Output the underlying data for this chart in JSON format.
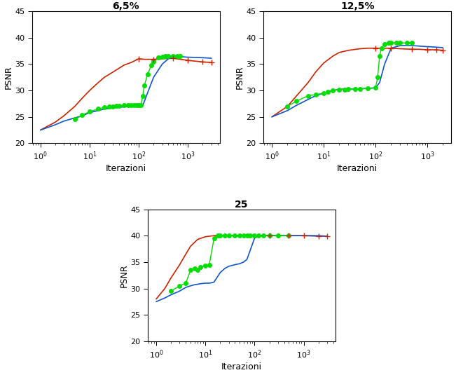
{
  "subplots": [
    {
      "title": "6,5%",
      "xlim_log": [
        0,
        3.5
      ],
      "ylim": [
        20,
        45
      ],
      "ylabel": "PSNR",
      "xlabel": "Iterazioni",
      "red_line": {
        "x": [
          1,
          2,
          3,
          5,
          7,
          10,
          15,
          20,
          30,
          50,
          70,
          100,
          130,
          200,
          300,
          500,
          700,
          1000,
          2000,
          3000
        ],
        "y": [
          22.5,
          24.0,
          25.2,
          27.0,
          28.5,
          30.0,
          31.5,
          32.5,
          33.5,
          34.8,
          35.3,
          36.0,
          35.9,
          35.9,
          36.0,
          36.1,
          35.9,
          35.7,
          35.4,
          35.3
        ]
      },
      "red_markers": {
        "x": [
          100,
          200,
          500,
          1000,
          2000,
          3000
        ],
        "y": [
          36.0,
          35.9,
          36.1,
          35.7,
          35.4,
          35.3
        ]
      },
      "blue_line": {
        "x": [
          1,
          2,
          3,
          5,
          7,
          10,
          15,
          20,
          30,
          50,
          70,
          100,
          120,
          150,
          200,
          300,
          400,
          500,
          700,
          1000,
          2000,
          3000
        ],
        "y": [
          22.5,
          23.5,
          24.2,
          24.8,
          25.2,
          25.8,
          26.2,
          26.5,
          26.7,
          26.9,
          27.0,
          27.1,
          27.1,
          29.5,
          32.5,
          35.0,
          36.0,
          36.3,
          36.4,
          36.3,
          36.2,
          36.1
        ]
      },
      "green_line": {
        "x": [
          5,
          7,
          10,
          15,
          20,
          25,
          30,
          35,
          40,
          50,
          60,
          70,
          80,
          90,
          100,
          110,
          120,
          130,
          150,
          180,
          200,
          250,
          300,
          350,
          400,
          500,
          600,
          700
        ],
        "y": [
          24.5,
          25.3,
          26.0,
          26.5,
          26.8,
          26.9,
          27.0,
          27.1,
          27.1,
          27.2,
          27.2,
          27.2,
          27.2,
          27.2,
          27.2,
          27.2,
          29.0,
          31.0,
          33.0,
          34.8,
          35.5,
          36.2,
          36.4,
          36.5,
          36.5,
          36.5,
          36.5,
          36.5
        ]
      }
    },
    {
      "title": "12,5%",
      "xlim_log": [
        0,
        3.3
      ],
      "ylim": [
        20,
        45
      ],
      "ylabel": "PSNR",
      "xlabel": "Iterazioni",
      "red_line": {
        "x": [
          1,
          2,
          3,
          5,
          7,
          10,
          15,
          20,
          30,
          50,
          70,
          100,
          150,
          200,
          300,
          500,
          700,
          1000,
          1500,
          2000
        ],
        "y": [
          25.0,
          27.0,
          29.0,
          31.5,
          33.5,
          35.2,
          36.5,
          37.2,
          37.6,
          37.9,
          38.0,
          38.0,
          38.0,
          38.0,
          37.9,
          37.8,
          37.8,
          37.7,
          37.7,
          37.6
        ]
      },
      "red_markers": {
        "x": [
          100,
          200,
          500,
          1000,
          1500,
          2000
        ],
        "y": [
          38.0,
          38.0,
          37.8,
          37.7,
          37.7,
          37.6
        ]
      },
      "blue_line": {
        "x": [
          1,
          2,
          3,
          5,
          7,
          10,
          15,
          20,
          30,
          50,
          70,
          100,
          120,
          150,
          200,
          300,
          500,
          700,
          1000,
          1500,
          2000
        ],
        "y": [
          25.0,
          26.2,
          27.2,
          28.3,
          29.0,
          29.5,
          30.0,
          30.2,
          30.3,
          30.3,
          30.4,
          30.5,
          31.5,
          35.0,
          38.0,
          38.5,
          38.5,
          38.4,
          38.3,
          38.2,
          38.1
        ]
      },
      "green_line": {
        "x": [
          2,
          3,
          5,
          7,
          10,
          12,
          15,
          20,
          25,
          30,
          40,
          50,
          70,
          100,
          110,
          120,
          130,
          150,
          180,
          200,
          250,
          300,
          400,
          500
        ],
        "y": [
          27.0,
          28.0,
          29.0,
          29.2,
          29.5,
          29.7,
          30.0,
          30.2,
          30.2,
          30.3,
          30.3,
          30.3,
          30.4,
          30.5,
          32.5,
          36.5,
          38.0,
          38.8,
          39.0,
          39.0,
          39.0,
          39.0,
          39.0,
          39.0
        ]
      }
    },
    {
      "title": "25",
      "xlim_log": [
        0,
        3.5
      ],
      "ylim": [
        20,
        45
      ],
      "ylabel": "PSNR",
      "xlabel": "Iterazioni",
      "red_line": {
        "x": [
          1,
          1.5,
          2,
          3,
          4,
          5,
          7,
          10,
          15,
          20,
          30,
          50,
          70,
          100,
          200,
          300,
          500,
          700,
          1000,
          2000,
          3000
        ],
        "y": [
          28.0,
          30.0,
          32.0,
          34.5,
          36.5,
          38.0,
          39.3,
          39.8,
          40.0,
          40.0,
          40.0,
          40.0,
          40.0,
          40.0,
          40.0,
          40.0,
          40.0,
          40.0,
          40.0,
          39.9,
          39.9
        ]
      },
      "red_markers": {
        "x": [
          200,
          500,
          1000,
          2000,
          3000
        ],
        "y": [
          40.0,
          40.0,
          40.0,
          39.9,
          39.9
        ]
      },
      "blue_line": {
        "x": [
          1,
          1.5,
          2,
          3,
          4,
          5,
          6,
          7,
          8,
          10,
          12,
          15,
          20,
          25,
          30,
          40,
          50,
          60,
          70,
          80,
          100,
          120,
          150,
          200,
          300,
          500,
          700,
          1000,
          2000,
          3000
        ],
        "y": [
          27.5,
          28.2,
          28.8,
          29.5,
          30.2,
          30.5,
          30.7,
          30.8,
          30.9,
          31.0,
          31.0,
          31.2,
          33.0,
          33.8,
          34.2,
          34.5,
          34.7,
          35.0,
          35.5,
          37.0,
          39.5,
          40.0,
          40.0,
          40.0,
          40.0,
          40.0,
          40.0,
          40.0,
          40.0,
          39.9
        ]
      },
      "green_line": {
        "x": [
          2,
          3,
          4,
          5,
          6,
          7,
          8,
          10,
          12,
          15,
          18,
          20,
          25,
          30,
          40,
          50,
          60,
          70,
          80,
          100,
          120,
          150,
          200,
          300,
          500
        ],
        "y": [
          29.5,
          30.5,
          31.0,
          33.5,
          33.8,
          33.5,
          34.0,
          34.3,
          34.5,
          39.5,
          40.0,
          40.0,
          40.0,
          40.0,
          40.0,
          40.0,
          40.0,
          40.0,
          40.0,
          40.0,
          40.0,
          40.0,
          40.0,
          40.0,
          40.0
        ]
      }
    }
  ],
  "red_color": "#cc2200",
  "blue_color": "#1155cc",
  "green_color": "#00dd00",
  "bg_color": "#ffffff",
  "yticks": [
    20,
    25,
    30,
    35,
    40,
    45
  ]
}
